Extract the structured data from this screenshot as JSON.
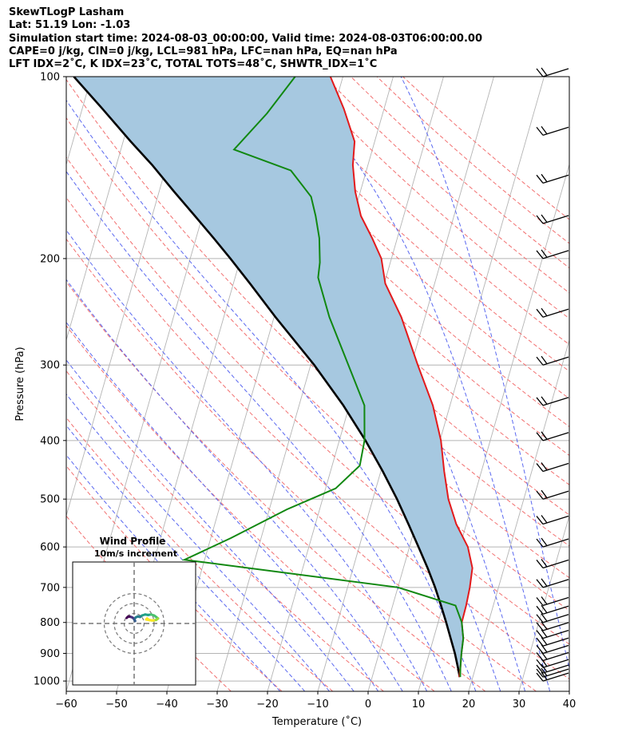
{
  "header": {
    "line1": "SkewTLogP Lasham",
    "line2": "Lat: 51.19   Lon: -1.03",
    "line3": "Simulation start time: 2024-08-03_00:00:00, Valid time: 2024-08-03T06:00:00.00",
    "line4": "CAPE=0 j/kg, CIN=0 j/kg, LCL=981 hPa, LFC=nan hPa, EQ=nan hPa",
    "line5": "LFT IDX=2˚C, K IDX=23˚C, TOTAL TOTS=48˚C, SHWTR_IDX=1˚C"
  },
  "colors": {
    "temperature": "#e31a1c",
    "dewpoint": "#118811",
    "parcel": "#000000",
    "shading": "#a6c8e0",
    "dry_adiabat": "#f27070",
    "moist_adiabat": "#5a68f0",
    "mixing_ratio": "#9a5cc8",
    "isotherm": "#b4b4b4"
  },
  "chart_data": [
    {
      "type": "line",
      "subtype": "skew-t log-p",
      "xlabel": "Temperature (˚C)",
      "ylabel": "Pressure (hPa)",
      "xlim": [
        -60,
        40
      ],
      "ylim": [
        1040,
        100
      ],
      "x_ticks": [
        "−60",
        "−50",
        "−40",
        "−30",
        "−20",
        "−10",
        "0",
        "10",
        "20",
        "30",
        "40"
      ],
      "x_tick_values": [
        -60,
        -50,
        -40,
        -30,
        -20,
        -10,
        0,
        10,
        20,
        30,
        40
      ],
      "y_ticks": [
        "100",
        "200",
        "300",
        "400",
        "500",
        "600",
        "700",
        "800",
        "900",
        "1000"
      ],
      "y_tick_values": [
        100,
        200,
        300,
        400,
        500,
        600,
        700,
        800,
        900,
        1000
      ],
      "y_scale": "log",
      "grid": true,
      "series": [
        {
          "key": "temperature",
          "points": [
            [
              17.3,
              985
            ],
            [
              17.0,
              950
            ],
            [
              16.4,
              900
            ],
            [
              15.9,
              850
            ],
            [
              14.7,
              800
            ],
            [
              14.6,
              750
            ],
            [
              14.3,
              700
            ],
            [
              13.7,
              650
            ],
            [
              11.6,
              600
            ],
            [
              8.0,
              550
            ],
            [
              5.0,
              500
            ],
            [
              2.6,
              450
            ],
            [
              0.2,
              400
            ],
            [
              -3.4,
              350
            ],
            [
              -8.7,
              300
            ],
            [
              -14.7,
              250
            ],
            [
              -19.8,
              220
            ],
            [
              -22.0,
              200
            ],
            [
              -25.0,
              185
            ],
            [
              -28.5,
              170
            ],
            [
              -31.0,
              155
            ],
            [
              -33.0,
              140
            ],
            [
              -34.0,
              128
            ],
            [
              -38.0,
              113
            ],
            [
              -42.5,
              100
            ]
          ]
        },
        {
          "key": "dewpoint",
          "points": [
            [
              17.5,
              985
            ],
            [
              17.0,
              950
            ],
            [
              16.4,
              900
            ],
            [
              15.9,
              850
            ],
            [
              14.7,
              800
            ],
            [
              12.5,
              750
            ],
            [
              0.0,
              700
            ],
            [
              -44.0,
              630
            ],
            [
              -36.0,
              580
            ],
            [
              -26.5,
              520
            ],
            [
              -18.0,
              480
            ],
            [
              -14.5,
              440
            ],
            [
              -15.0,
              400
            ],
            [
              -17.0,
              350
            ],
            [
              -22.5,
              300
            ],
            [
              -29.0,
              250
            ],
            [
              -33.5,
              215
            ],
            [
              -34.0,
              203
            ],
            [
              -35.5,
              185
            ],
            [
              -37.5,
              170
            ],
            [
              -39.5,
              158
            ],
            [
              -45.0,
              143
            ],
            [
              -57.5,
              132
            ],
            [
              -53.0,
              115
            ],
            [
              -49.5,
              100
            ]
          ]
        },
        {
          "key": "parcel",
          "points": [
            [
              17.4,
              985
            ],
            [
              16.5,
              950
            ],
            [
              15.1,
              900
            ],
            [
              13.4,
              850
            ],
            [
              11.6,
              800
            ],
            [
              9.6,
              750
            ],
            [
              7.4,
              700
            ],
            [
              4.8,
              650
            ],
            [
              1.8,
              600
            ],
            [
              -1.5,
              550
            ],
            [
              -5.2,
              500
            ],
            [
              -9.6,
              450
            ],
            [
              -14.8,
              400
            ],
            [
              -21.2,
              350
            ],
            [
              -29.3,
              300
            ],
            [
              -39.7,
              250
            ],
            [
              -46.7,
              220
            ],
            [
              -52.0,
              200
            ],
            [
              -56.5,
              185
            ],
            [
              -61.5,
              170
            ],
            [
              -67.0,
              155
            ],
            [
              -72.9,
              140
            ],
            [
              -78.5,
              128
            ],
            [
              -86.0,
              113
            ],
            [
              -93.5,
              100
            ]
          ]
        }
      ],
      "wind_barb_levels": [
        1000,
        985,
        970,
        950,
        925,
        900,
        875,
        850,
        825,
        800,
        775,
        750,
        700,
        650,
        600,
        550,
        500,
        450,
        400,
        350,
        300,
        250,
        200,
        175,
        150,
        125,
        100
      ]
    },
    {
      "type": "scatter",
      "subtype": "hodograph",
      "title": "Wind Profile",
      "subtitle": "10m/s increment",
      "rings": [
        10,
        20,
        30
      ],
      "points": [
        [
          -7.5,
          5.5
        ],
        [
          -6.5,
          6.5
        ],
        [
          -5.0,
          7.0
        ],
        [
          -3.0,
          6.5
        ],
        [
          -1.5,
          5.8
        ],
        [
          -0.5,
          5.0
        ],
        [
          0.5,
          3.5
        ],
        [
          1.0,
          2.5
        ],
        [
          0.0,
          4.0
        ],
        [
          1.5,
          6.0
        ],
        [
          3.5,
          7.0
        ],
        [
          6.0,
          6.5
        ],
        [
          8.0,
          8.0
        ],
        [
          11.0,
          9.0
        ],
        [
          14.0,
          8.5
        ],
        [
          17.0,
          9.0
        ],
        [
          20.0,
          8.0
        ],
        [
          22.0,
          6.5
        ],
        [
          24.0,
          5.0
        ],
        [
          22.0,
          3.5
        ],
        [
          18.0,
          3.0
        ],
        [
          15.0,
          3.5
        ],
        [
          13.0,
          5.0
        ],
        [
          12.0,
          4.0
        ],
        [
          16.0,
          3.2
        ],
        [
          19.5,
          3.0
        ]
      ]
    }
  ]
}
